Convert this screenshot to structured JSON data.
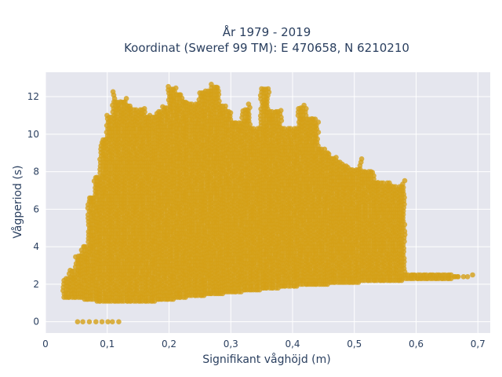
{
  "chart_data": {
    "type": "scatter",
    "title_line1": "År 1979 - 2019",
    "title_line2": "Koordinat (Sweref 99 TM): E 470658, N 6210210",
    "xlabel": "Signifikant våghöjd (m)",
    "ylabel": "Vågperiod (s)",
    "xlim": [
      0,
      0.72
    ],
    "ylim": [
      -0.6,
      13.3
    ],
    "x_ticks": [
      0,
      0.1,
      0.2,
      0.3,
      0.4,
      0.5,
      0.6,
      0.7
    ],
    "x_tick_labels": [
      "0",
      "0,1",
      "0,2",
      "0,3",
      "0,4",
      "0,5",
      "0,6",
      "0,7"
    ],
    "y_ticks": [
      0,
      2,
      4,
      6,
      8,
      10,
      12
    ],
    "y_tick_labels": [
      "0",
      "2",
      "4",
      "6",
      "8",
      "10",
      "12"
    ],
    "grid": true,
    "marker_color": "#d4a017",
    "plot_background": "#e5e6ee",
    "points_description_bands": [
      {
        "x_range": [
          0.03,
          0.69
        ],
        "y_low_band": [
          1.2,
          2.6
        ]
      },
      {
        "x_range": [
          0.07,
          0.58
        ],
        "y_range": [
          2.0,
          9.0
        ]
      },
      {
        "x_range": [
          0.09,
          0.47
        ],
        "y_range": [
          9.0,
          12.8
        ]
      }
    ],
    "series": [
      {
        "x": [
          0.03,
          0.04,
          0.05,
          0.06,
          0.07,
          0.08,
          0.09,
          0.1,
          0.11,
          0.12,
          0.13,
          0.14,
          0.15,
          0.16,
          0.17,
          0.18,
          0.19,
          0.2,
          0.21,
          0.22,
          0.23,
          0.24,
          0.25,
          0.26,
          0.27,
          0.28,
          0.29,
          0.3,
          0.31,
          0.32,
          0.33,
          0.34,
          0.35,
          0.36,
          0.37,
          0.38,
          0.39,
          0.4,
          0.41,
          0.42,
          0.43,
          0.44,
          0.45,
          0.46,
          0.47,
          0.48,
          0.49,
          0.5,
          0.51,
          0.52,
          0.53,
          0.54,
          0.55,
          0.56,
          0.57,
          0.58,
          0.59,
          0.6,
          0.61,
          0.62,
          0.63,
          0.64,
          0.65,
          0.66,
          0.67,
          0.69,
          0.05,
          0.06,
          0.07,
          0.08,
          0.09,
          0.1,
          0.11,
          0.12
        ],
        "y_min": [
          1.3,
          1.3,
          1.3,
          1.3,
          1.2,
          1.2,
          1.1,
          1.1,
          1.1,
          1.1,
          1.1,
          1.1,
          1.1,
          1.1,
          1.1,
          1.2,
          1.2,
          1.2,
          1.3,
          1.3,
          1.4,
          1.4,
          1.4,
          1.5,
          1.5,
          1.5,
          1.6,
          1.6,
          1.6,
          1.7,
          1.7,
          1.7,
          1.8,
          1.8,
          1.8,
          1.9,
          1.9,
          1.9,
          2.0,
          2.0,
          2.0,
          2.0,
          2.0,
          2.1,
          2.1,
          2.1,
          2.1,
          2.1,
          2.2,
          2.2,
          2.2,
          2.2,
          2.2,
          2.2,
          2.2,
          2.3,
          2.3,
          2.3,
          2.3,
          2.3,
          2.3,
          2.3,
          2.3,
          2.4,
          2.4,
          2.5,
          0,
          0,
          0,
          0,
          0,
          0,
          0,
          0
        ],
        "y_max": [
          2.3,
          2.8,
          3.6,
          4.0,
          6.6,
          7.8,
          9.7,
          11.0,
          12.3,
          11.8,
          12.0,
          11.5,
          11.3,
          11.5,
          11.0,
          11.2,
          11.5,
          12.6,
          12.5,
          12.1,
          11.7,
          11.6,
          12.2,
          12.4,
          12.8,
          12.6,
          11.5,
          11.2,
          10.7,
          11.3,
          11.7,
          10.3,
          12.5,
          12.5,
          11.3,
          11.3,
          10.3,
          10.3,
          11.5,
          11.6,
          10.9,
          10.8,
          9.2,
          9.0,
          8.8,
          8.5,
          8.3,
          8.2,
          8.7,
          8.1,
          8.0,
          7.5,
          7.4,
          7.4,
          7.2,
          7.6,
          2.6,
          2.6,
          2.5,
          2.5,
          2.5,
          2.5,
          2.5,
          2.5,
          2.5,
          2.6,
          0,
          0,
          0,
          0,
          0,
          0,
          0,
          0
        ]
      }
    ]
  }
}
